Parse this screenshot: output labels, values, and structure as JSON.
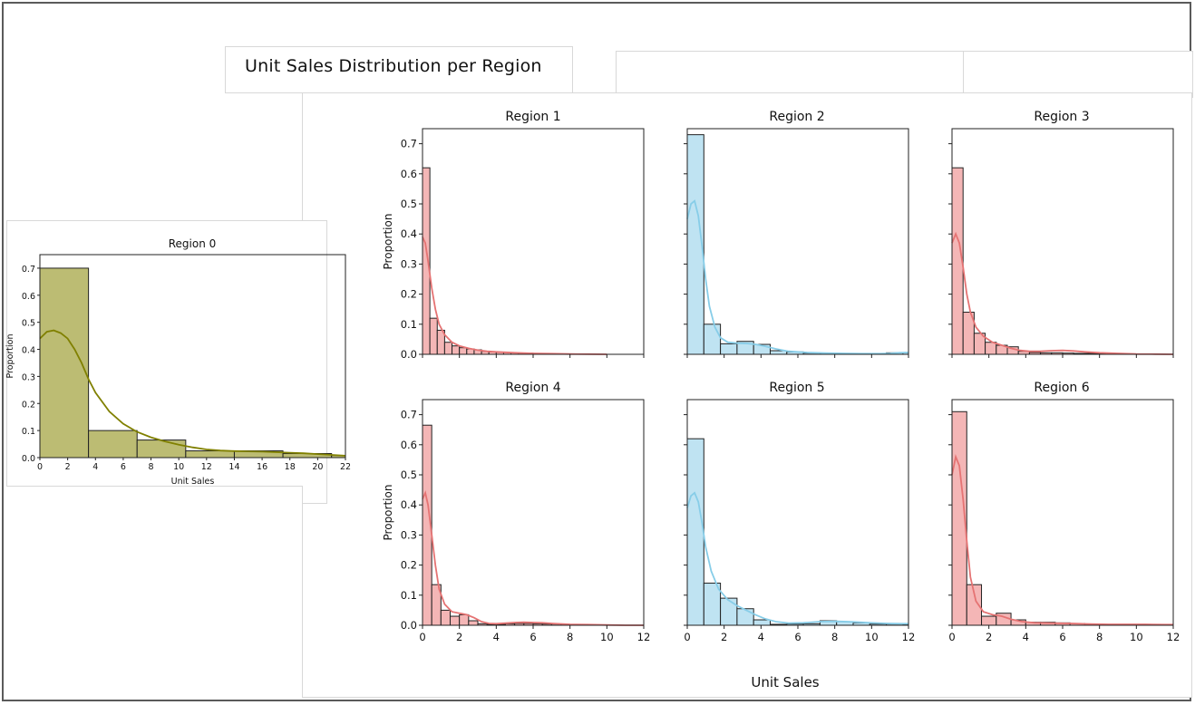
{
  "figure": {
    "title": "Unit Sales Distribution per Region",
    "xlabel": "Unit Sales"
  },
  "chart_data": [
    {
      "type": "bar",
      "title": "Region 0",
      "xlabel": "Unit Sales",
      "ylabel": "Proportion",
      "xlim": [
        0,
        22
      ],
      "ylim": [
        0,
        0.75
      ],
      "xticks": [
        0,
        2,
        4,
        6,
        8,
        10,
        12,
        14,
        16,
        18,
        20,
        22
      ],
      "yticks": [
        0.0,
        0.1,
        0.2,
        0.3,
        0.4,
        0.5,
        0.6,
        0.7
      ],
      "bin_edges": [
        0,
        3.5,
        7,
        10.5,
        14,
        17.5,
        21,
        22
      ],
      "values": [
        0.7,
        0.1,
        0.065,
        0.025,
        0.025,
        0.015,
        0.008
      ],
      "kde": [
        [
          0,
          0.44
        ],
        [
          0.5,
          0.465
        ],
        [
          1,
          0.47
        ],
        [
          1.5,
          0.46
        ],
        [
          2,
          0.44
        ],
        [
          2.5,
          0.4
        ],
        [
          3,
          0.35
        ],
        [
          3.5,
          0.29
        ],
        [
          4,
          0.24
        ],
        [
          5,
          0.17
        ],
        [
          6,
          0.125
        ],
        [
          7,
          0.095
        ],
        [
          8,
          0.075
        ],
        [
          9,
          0.06
        ],
        [
          10,
          0.048
        ],
        [
          11,
          0.038
        ],
        [
          12,
          0.03
        ],
        [
          13,
          0.026
        ],
        [
          14,
          0.024
        ],
        [
          15,
          0.023
        ],
        [
          16,
          0.022
        ],
        [
          17,
          0.02
        ],
        [
          18,
          0.018
        ],
        [
          19,
          0.016
        ],
        [
          20,
          0.013
        ],
        [
          21,
          0.01
        ],
        [
          22,
          0.007
        ]
      ],
      "color": "#bcbc73",
      "line_color": "#808000"
    },
    {
      "type": "bar",
      "title": "Region 1",
      "ylabel": "Proportion",
      "xlim": [
        0,
        12
      ],
      "ylim": [
        0,
        0.75
      ],
      "yticks": [
        0.0,
        0.1,
        0.2,
        0.3,
        0.4,
        0.5,
        0.6,
        0.7
      ],
      "bin_edges": [
        0,
        0.4,
        0.8,
        1.2,
        1.6,
        2.0,
        2.4,
        2.8,
        3.2,
        3.6,
        4.0,
        4.4,
        4.8,
        5.2,
        5.6,
        6.0,
        6.4,
        6.8,
        7.2
      ],
      "values": [
        0.62,
        0.12,
        0.08,
        0.04,
        0.028,
        0.022,
        0.018,
        0.015,
        0.01,
        0.008,
        0.007,
        0.006,
        0.005,
        0.004,
        0.004,
        0.003,
        0.002,
        0.001
      ],
      "kde": [
        [
          0,
          0.39
        ],
        [
          0.15,
          0.37
        ],
        [
          0.3,
          0.31
        ],
        [
          0.5,
          0.22
        ],
        [
          0.7,
          0.15
        ],
        [
          0.9,
          0.1
        ],
        [
          1.2,
          0.065
        ],
        [
          1.6,
          0.04
        ],
        [
          2,
          0.028
        ],
        [
          2.5,
          0.02
        ],
        [
          3,
          0.014
        ],
        [
          3.5,
          0.01
        ],
        [
          4,
          0.008
        ],
        [
          5,
          0.005
        ],
        [
          6,
          0.003
        ],
        [
          7,
          0.002
        ],
        [
          8,
          0.001
        ],
        [
          9,
          0.0005
        ],
        [
          10,
          0
        ]
      ],
      "color": "#f4b6b6",
      "line_color": "#e57373"
    },
    {
      "type": "bar",
      "title": "Region 2",
      "xlim": [
        0,
        12
      ],
      "ylim": [
        0,
        0.75
      ],
      "bin_edges": [
        0,
        0.9,
        1.8,
        2.7,
        3.6,
        4.5,
        5.4,
        6.3,
        7.2,
        8.1,
        9.0,
        9.9,
        10.8,
        11.7,
        12.0
      ],
      "values": [
        0.73,
        0.1,
        0.035,
        0.043,
        0.033,
        0.012,
        0.008,
        0.004,
        0.003,
        0.002,
        0.001,
        0.001,
        0.005,
        0.005
      ],
      "kde": [
        [
          0,
          0.45
        ],
        [
          0.2,
          0.5
        ],
        [
          0.4,
          0.51
        ],
        [
          0.6,
          0.46
        ],
        [
          0.8,
          0.36
        ],
        [
          1.0,
          0.25
        ],
        [
          1.2,
          0.16
        ],
        [
          1.5,
          0.09
        ],
        [
          1.8,
          0.055
        ],
        [
          2.2,
          0.04
        ],
        [
          2.7,
          0.037
        ],
        [
          3.2,
          0.036
        ],
        [
          3.7,
          0.033
        ],
        [
          4.2,
          0.027
        ],
        [
          4.8,
          0.018
        ],
        [
          5.5,
          0.01
        ],
        [
          6.5,
          0.006
        ],
        [
          7.5,
          0.004
        ],
        [
          8.5,
          0.003
        ],
        [
          9.5,
          0.002
        ],
        [
          10.5,
          0.002
        ],
        [
          11,
          0.003
        ],
        [
          11.5,
          0.005
        ],
        [
          12,
          0.006
        ]
      ],
      "color": "#bfe3f2",
      "line_color": "#87cde8"
    },
    {
      "type": "bar",
      "title": "Region 3",
      "xlim": [
        0,
        12
      ],
      "ylim": [
        0,
        0.75
      ],
      "bin_edges": [
        0,
        0.6,
        1.2,
        1.8,
        2.4,
        3.0,
        3.6,
        4.2,
        4.8,
        5.4,
        6.0,
        6.6,
        7.2,
        7.8,
        8.4,
        9.0
      ],
      "values": [
        0.62,
        0.14,
        0.07,
        0.04,
        0.03,
        0.025,
        0.01,
        0.006,
        0.005,
        0.005,
        0.004,
        0.003,
        0.003,
        0.002,
        0.001
      ],
      "kde": [
        [
          0,
          0.37
        ],
        [
          0.2,
          0.4
        ],
        [
          0.4,
          0.37
        ],
        [
          0.6,
          0.29
        ],
        [
          0.8,
          0.2
        ],
        [
          1.0,
          0.14
        ],
        [
          1.3,
          0.09
        ],
        [
          1.7,
          0.06
        ],
        [
          2.2,
          0.04
        ],
        [
          2.7,
          0.03
        ],
        [
          3.2,
          0.02
        ],
        [
          3.7,
          0.013
        ],
        [
          4.2,
          0.01
        ],
        [
          4.8,
          0.01
        ],
        [
          5.4,
          0.012
        ],
        [
          6.0,
          0.013
        ],
        [
          6.6,
          0.011
        ],
        [
          7.2,
          0.008
        ],
        [
          8,
          0.005
        ],
        [
          9,
          0.003
        ],
        [
          10,
          0.001
        ],
        [
          11,
          0.0005
        ],
        [
          12,
          0
        ]
      ],
      "color": "#f4b6b6",
      "line_color": "#e57373"
    },
    {
      "type": "bar",
      "title": "Region 4",
      "ylabel": "Proportion",
      "xlim": [
        0,
        12
      ],
      "xticks": [
        0,
        2,
        4,
        6,
        8,
        10,
        12
      ],
      "ylim": [
        0,
        0.75
      ],
      "yticks": [
        0.0,
        0.1,
        0.2,
        0.3,
        0.4,
        0.5,
        0.6,
        0.7
      ],
      "bin_edges": [
        0,
        0.5,
        1.0,
        1.5,
        2.0,
        2.5,
        3.0,
        3.5,
        4.0,
        4.5,
        5.0,
        5.5,
        6.0,
        6.5,
        7.0,
        7.5,
        8.0,
        8.5,
        9.0,
        9.5,
        10.0
      ],
      "values": [
        0.665,
        0.135,
        0.05,
        0.03,
        0.035,
        0.015,
        0.005,
        0.003,
        0.003,
        0.005,
        0.006,
        0.006,
        0.005,
        0.004,
        0.004,
        0.003,
        0.002,
        0.001,
        0.001,
        0.001
      ],
      "kde": [
        [
          0,
          0.42
        ],
        [
          0.15,
          0.44
        ],
        [
          0.3,
          0.4
        ],
        [
          0.5,
          0.3
        ],
        [
          0.7,
          0.2
        ],
        [
          0.9,
          0.12
        ],
        [
          1.2,
          0.07
        ],
        [
          1.6,
          0.045
        ],
        [
          2.0,
          0.04
        ],
        [
          2.4,
          0.035
        ],
        [
          2.8,
          0.025
        ],
        [
          3.2,
          0.012
        ],
        [
          3.6,
          0.006
        ],
        [
          4.0,
          0.005
        ],
        [
          4.5,
          0.007
        ],
        [
          5.0,
          0.009
        ],
        [
          5.5,
          0.01
        ],
        [
          6.0,
          0.009
        ],
        [
          6.5,
          0.008
        ],
        [
          7.0,
          0.006
        ],
        [
          8.0,
          0.003
        ],
        [
          9.0,
          0.002
        ],
        [
          10,
          0.001
        ],
        [
          11,
          0
        ],
        [
          12,
          0
        ]
      ],
      "color": "#f4b6b6",
      "line_color": "#e57373"
    },
    {
      "type": "bar",
      "title": "Region 5",
      "xlim": [
        0,
        12
      ],
      "xticks": [
        0,
        2,
        4,
        6,
        8,
        10,
        12
      ],
      "ylim": [
        0,
        0.75
      ],
      "bin_edges": [
        0,
        0.9,
        1.8,
        2.7,
        3.6,
        4.5,
        5.4,
        6.3,
        7.2,
        8.1,
        9.0,
        9.9,
        10.8,
        11.7,
        12.0
      ],
      "values": [
        0.62,
        0.14,
        0.09,
        0.055,
        0.018,
        0.003,
        0.004,
        0.005,
        0.015,
        0.012,
        0.008,
        0.004,
        0.004,
        0.002
      ],
      "kde": [
        [
          0,
          0.39
        ],
        [
          0.2,
          0.43
        ],
        [
          0.4,
          0.44
        ],
        [
          0.6,
          0.41
        ],
        [
          0.8,
          0.34
        ],
        [
          1.0,
          0.26
        ],
        [
          1.3,
          0.18
        ],
        [
          1.7,
          0.12
        ],
        [
          2.2,
          0.085
        ],
        [
          2.7,
          0.065
        ],
        [
          3.2,
          0.05
        ],
        [
          3.7,
          0.035
        ],
        [
          4.2,
          0.022
        ],
        [
          4.8,
          0.012
        ],
        [
          5.5,
          0.007
        ],
        [
          6.3,
          0.008
        ],
        [
          7.2,
          0.012
        ],
        [
          8.1,
          0.013
        ],
        [
          9.0,
          0.011
        ],
        [
          9.9,
          0.008
        ],
        [
          10.8,
          0.006
        ],
        [
          11.7,
          0.005
        ],
        [
          12,
          0.005
        ]
      ],
      "color": "#bfe3f2",
      "line_color": "#87cde8"
    },
    {
      "type": "bar",
      "title": "Region 6",
      "xlim": [
        0,
        12
      ],
      "xticks": [
        0,
        2,
        4,
        6,
        8,
        10,
        12
      ],
      "ylim": [
        0,
        0.75
      ],
      "bin_edges": [
        0,
        0.8,
        1.6,
        2.4,
        3.2,
        4.0,
        4.8,
        5.6,
        6.4,
        7.2,
        8.0,
        8.8,
        9.6,
        10.4,
        11.2,
        12.0
      ],
      "values": [
        0.71,
        0.135,
        0.03,
        0.04,
        0.018,
        0.01,
        0.01,
        0.008,
        0.006,
        0.004,
        0.003,
        0.003,
        0.002,
        0.002,
        0.002
      ],
      "kde": [
        [
          0,
          0.5
        ],
        [
          0.2,
          0.56
        ],
        [
          0.4,
          0.53
        ],
        [
          0.6,
          0.42
        ],
        [
          0.8,
          0.28
        ],
        [
          1.0,
          0.16
        ],
        [
          1.3,
          0.08
        ],
        [
          1.7,
          0.045
        ],
        [
          2.2,
          0.035
        ],
        [
          2.7,
          0.03
        ],
        [
          3.2,
          0.02
        ],
        [
          3.8,
          0.012
        ],
        [
          4.5,
          0.008
        ],
        [
          5.5,
          0.007
        ],
        [
          6.5,
          0.006
        ],
        [
          7.5,
          0.004
        ],
        [
          8.5,
          0.003
        ],
        [
          9.5,
          0.003
        ],
        [
          10.5,
          0.003
        ],
        [
          11.5,
          0.002
        ],
        [
          12,
          0.002
        ]
      ],
      "color": "#f4b6b6",
      "line_color": "#e57373"
    }
  ]
}
